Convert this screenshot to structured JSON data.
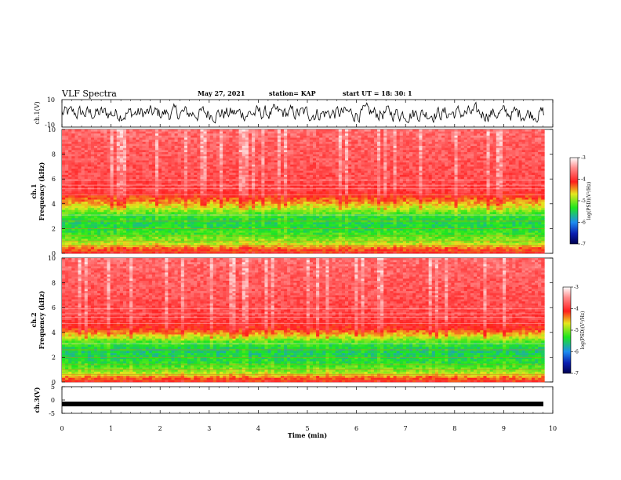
{
  "header": {
    "title": "VLF Spectra",
    "date": "May 27, 2021",
    "station": "station= KAP",
    "start": "start UT =   18: 30: 1"
  },
  "colors": {
    "low": "#0a1eb0",
    "mid_low": "#1ee61e",
    "mid": "#e6e61e",
    "high": "#ff1e1e",
    "top": "#ffffff"
  },
  "chart_data": [
    {
      "type": "line",
      "name": "ch1-waveform",
      "ylabel": "ch.1(V)",
      "ylim": [
        -10,
        10
      ],
      "y_ticks": [
        "10",
        "-10"
      ],
      "xlim": [
        0,
        10
      ]
    },
    {
      "type": "heatmap",
      "name": "ch1-spectrogram",
      "ylabel_line1": "ch.1",
      "ylabel_line2": "Frequency (kHz)",
      "ylim": [
        0,
        10
      ],
      "xlim": [
        0,
        9.83
      ],
      "y_ticks": [
        "0",
        "2",
        "4",
        "6",
        "8",
        "10"
      ],
      "color_scale": {
        "label": "log(PSD)(V²/Hz)",
        "range": [
          -7,
          -3
        ],
        "ticks": [
          "-3",
          "-4",
          "-5",
          "-6",
          "-7"
        ]
      },
      "band_profile": [
        {
          "f_khz": 0.0,
          "level": -4.0
        },
        {
          "f_khz": 0.4,
          "level": -4.3
        },
        {
          "f_khz": 0.8,
          "level": -4.9
        },
        {
          "f_khz": 1.5,
          "level": -5.3
        },
        {
          "f_khz": 2.2,
          "level": -5.5
        },
        {
          "f_khz": 3.0,
          "level": -5.4
        },
        {
          "f_khz": 3.6,
          "level": -4.9
        },
        {
          "f_khz": 4.2,
          "level": -4.4
        },
        {
          "f_khz": 5.0,
          "level": -3.9
        },
        {
          "f_khz": 6.0,
          "level": -3.8
        },
        {
          "f_khz": 8.0,
          "level": -3.7
        },
        {
          "f_khz": 10.0,
          "level": -3.6
        }
      ]
    },
    {
      "type": "heatmap",
      "name": "ch2-spectrogram",
      "ylabel_line1": "ch.2",
      "ylabel_line2": "Frequency (kHz)",
      "ylim": [
        0,
        10
      ],
      "xlim": [
        0,
        9.83
      ],
      "y_ticks": [
        "0",
        "2",
        "4",
        "6",
        "8",
        "10"
      ],
      "color_scale": {
        "label": "log(PSD)(V²/Hz)",
        "range": [
          -7,
          -3
        ],
        "ticks": [
          "-3",
          "-4",
          "-5",
          "-6",
          "-7"
        ]
      },
      "band_profile": [
        {
          "f_khz": 0.0,
          "level": -4.0
        },
        {
          "f_khz": 0.4,
          "level": -4.4
        },
        {
          "f_khz": 0.8,
          "level": -5.0
        },
        {
          "f_khz": 1.5,
          "level": -5.4
        },
        {
          "f_khz": 2.5,
          "level": -5.6
        },
        {
          "f_khz": 3.2,
          "level": -5.3
        },
        {
          "f_khz": 3.8,
          "level": -4.6
        },
        {
          "f_khz": 4.3,
          "level": -4.1
        },
        {
          "f_khz": 5.0,
          "level": -3.9
        },
        {
          "f_khz": 6.0,
          "level": -3.8
        },
        {
          "f_khz": 8.0,
          "level": -3.7
        },
        {
          "f_khz": 10.0,
          "level": -3.6
        }
      ]
    },
    {
      "type": "line",
      "name": "ch3-waveform",
      "ylabel": "ch.3(V)",
      "ylim": [
        -5,
        5
      ],
      "y_ticks": [
        "5",
        "0",
        "-5"
      ],
      "xlim": [
        0,
        10
      ],
      "xlabel": "Time (min)",
      "x_ticks": [
        "0",
        "1",
        "2",
        "3",
        "4",
        "5",
        "6",
        "7",
        "8",
        "9",
        "10"
      ],
      "level_v": -1.5
    }
  ]
}
